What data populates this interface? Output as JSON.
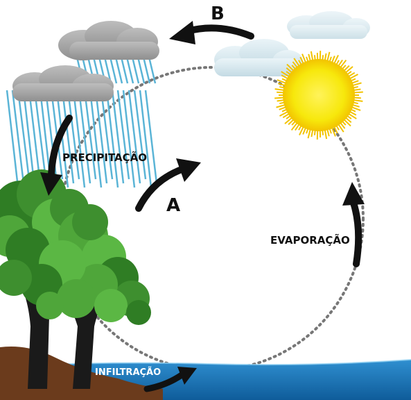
{
  "labels": {
    "b": "B",
    "a": "A",
    "precipitacao": "PRECIPITAÇÃO",
    "evaporacao": "EVAPORAÇÃO",
    "infiltracao": "INFILTRAÇÃO"
  },
  "colors": {
    "cloud_dark": "#a9a9a9",
    "cloud_light": "#d7e7ee",
    "rain": "#5ab4d6",
    "sun": "#f7e80c",
    "sun_rays": "#f2c300",
    "water": "#1771b4",
    "soil": "#6b3b1c",
    "leaves": "#3e8f2f",
    "trunk": "#1a1a1a",
    "arrow": "#111111",
    "cycle_path": "#777777"
  },
  "icons": [
    "rain-cloud-icon",
    "evaporation-cloud-icon",
    "sun-icon",
    "tree-icon",
    "water-icon"
  ]
}
